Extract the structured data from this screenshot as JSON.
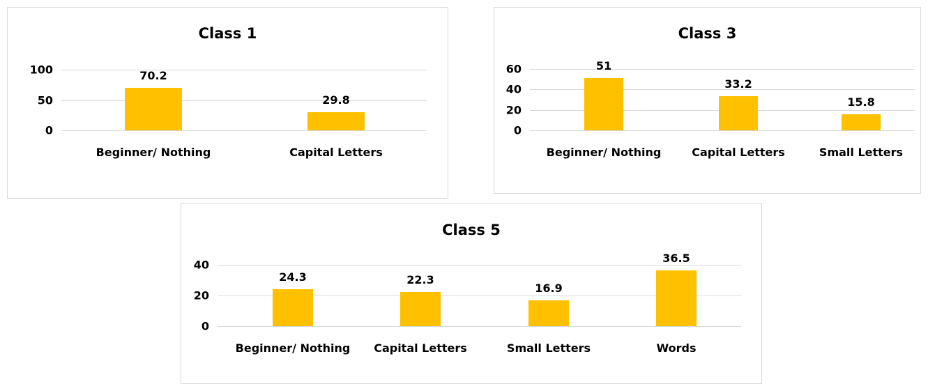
{
  "chart_data": [
    {
      "type": "bar",
      "title": "Class 1",
      "categories": [
        "Beginner/ Nothing",
        "Capital Letters"
      ],
      "values": [
        70.2,
        29.8
      ],
      "color": "#ffc000",
      "ylim": [
        0,
        100
      ],
      "yticks": [
        0,
        50,
        100
      ],
      "grid": true
    },
    {
      "type": "bar",
      "title": "Class 3",
      "categories": [
        "Beginner/ Nothing",
        "Capital Letters",
        "Small Letters"
      ],
      "values": [
        51,
        33.2,
        15.8
      ],
      "color": "#ffc000",
      "ylim": [
        0,
        60
      ],
      "yticks": [
        0,
        20,
        40,
        60
      ],
      "grid": true
    },
    {
      "type": "bar",
      "title": "Class 5",
      "categories": [
        "Beginner/ Nothing",
        "Capital Letters",
        "Small Letters",
        "Words"
      ],
      "values": [
        24.3,
        22.3,
        16.9,
        36.5
      ],
      "color": "#ffc000",
      "ylim": [
        0,
        40
      ],
      "yticks": [
        0,
        20,
        40
      ],
      "grid": true
    }
  ]
}
